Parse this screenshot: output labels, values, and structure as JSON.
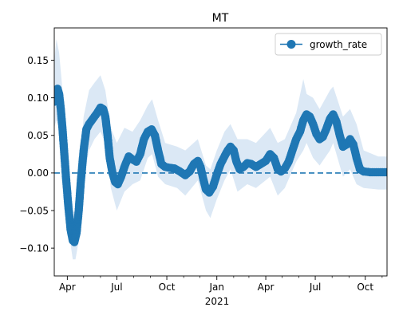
{
  "chart_data": {
    "type": "line",
    "title": "MT",
    "xlabel": "2021",
    "ylabel": "",
    "x_ticks": [
      "Apr",
      "Jul",
      "Oct",
      "Jan",
      "Apr",
      "Jul",
      "Oct"
    ],
    "y_ticks": [
      "0.15",
      "0.10",
      "0.05",
      "0.00",
      "−0.05",
      "−0.10"
    ],
    "ylim": [
      -0.137,
      0.193
    ],
    "xlim": [
      "2020-03-08",
      "2021-11-10"
    ],
    "legend": {
      "position": "top-right",
      "entries": [
        "growth_rate"
      ]
    },
    "grid": false,
    "colors": {
      "series": "#1f77b4",
      "band": "#dbe8f5"
    },
    "reference_line": {
      "y": 0.0,
      "style": "dashed"
    },
    "series": [
      {
        "name": "growth_rate",
        "marker": "circle",
        "points": [
          [
            "2020-03-08",
            0.095
          ],
          [
            "2020-03-11",
            0.108
          ],
          [
            "2020-03-14",
            0.112
          ],
          [
            "2020-03-17",
            0.105
          ],
          [
            "2020-03-20",
            0.085
          ],
          [
            "2020-03-23",
            0.06
          ],
          [
            "2020-03-26",
            0.03
          ],
          [
            "2020-03-30",
            -0.01
          ],
          [
            "2020-04-03",
            -0.045
          ],
          [
            "2020-04-07",
            -0.075
          ],
          [
            "2020-04-11",
            -0.09
          ],
          [
            "2020-04-14",
            -0.092
          ],
          [
            "2020-04-18",
            -0.08
          ],
          [
            "2020-04-22",
            -0.05
          ],
          [
            "2020-04-26",
            -0.01
          ],
          [
            "2020-05-01",
            0.03
          ],
          [
            "2020-05-06",
            0.058
          ],
          [
            "2020-05-11",
            0.065
          ],
          [
            "2020-05-16",
            0.07
          ],
          [
            "2020-05-21",
            0.075
          ],
          [
            "2020-05-26",
            0.08
          ],
          [
            "2020-06-01",
            0.087
          ],
          [
            "2020-06-06",
            0.085
          ],
          [
            "2020-06-10",
            0.075
          ],
          [
            "2020-06-14",
            0.05
          ],
          [
            "2020-06-18",
            0.02
          ],
          [
            "2020-06-23",
            0.0
          ],
          [
            "2020-06-28",
            -0.012
          ],
          [
            "2020-07-03",
            -0.015
          ],
          [
            "2020-07-09",
            -0.005
          ],
          [
            "2020-07-16",
            0.01
          ],
          [
            "2020-07-23",
            0.022
          ],
          [
            "2020-07-30",
            0.018
          ],
          [
            "2020-08-06",
            0.015
          ],
          [
            "2020-08-13",
            0.025
          ],
          [
            "2020-08-20",
            0.045
          ],
          [
            "2020-08-27",
            0.055
          ],
          [
            "2020-09-03",
            0.058
          ],
          [
            "2020-09-09",
            0.05
          ],
          [
            "2020-09-15",
            0.03
          ],
          [
            "2020-09-21",
            0.012
          ],
          [
            "2020-09-28",
            0.008
          ],
          [
            "2020-10-05",
            0.007
          ],
          [
            "2020-10-15",
            0.006
          ],
          [
            "2020-10-25",
            0.002
          ],
          [
            "2020-11-04",
            -0.003
          ],
          [
            "2020-11-12",
            0.002
          ],
          [
            "2020-11-20",
            0.012
          ],
          [
            "2020-11-27",
            0.016
          ],
          [
            "2020-12-02",
            0.008
          ],
          [
            "2020-12-07",
            -0.008
          ],
          [
            "2020-12-12",
            -0.022
          ],
          [
            "2020-12-18",
            -0.026
          ],
          [
            "2020-12-25",
            -0.018
          ],
          [
            "2021-01-01",
            -0.002
          ],
          [
            "2021-01-08",
            0.012
          ],
          [
            "2021-01-15",
            0.022
          ],
          [
            "2021-01-21",
            0.03
          ],
          [
            "2021-01-26",
            0.035
          ],
          [
            "2021-02-01",
            0.03
          ],
          [
            "2021-02-06",
            0.015
          ],
          [
            "2021-02-12",
            0.005
          ],
          [
            "2021-02-19",
            0.008
          ],
          [
            "2021-02-26",
            0.013
          ],
          [
            "2021-03-05",
            0.012
          ],
          [
            "2021-03-14",
            0.008
          ],
          [
            "2021-03-23",
            0.012
          ],
          [
            "2021-04-01",
            0.016
          ],
          [
            "2021-04-09",
            0.025
          ],
          [
            "2021-04-16",
            0.02
          ],
          [
            "2021-04-23",
            0.005
          ],
          [
            "2021-04-29",
            0.002
          ],
          [
            "2021-05-06",
            0.006
          ],
          [
            "2021-05-13",
            0.015
          ],
          [
            "2021-05-20",
            0.03
          ],
          [
            "2021-05-27",
            0.045
          ],
          [
            "2021-06-03",
            0.055
          ],
          [
            "2021-06-09",
            0.07
          ],
          [
            "2021-06-15",
            0.078
          ],
          [
            "2021-06-21",
            0.075
          ],
          [
            "2021-06-27",
            0.065
          ],
          [
            "2021-07-03",
            0.052
          ],
          [
            "2021-07-09",
            0.045
          ],
          [
            "2021-07-15",
            0.048
          ],
          [
            "2021-07-21",
            0.058
          ],
          [
            "2021-07-28",
            0.072
          ],
          [
            "2021-08-03",
            0.078
          ],
          [
            "2021-08-09",
            0.068
          ],
          [
            "2021-08-15",
            0.05
          ],
          [
            "2021-08-21",
            0.035
          ],
          [
            "2021-08-28",
            0.038
          ],
          [
            "2021-09-03",
            0.045
          ],
          [
            "2021-09-09",
            0.038
          ],
          [
            "2021-09-15",
            0.02
          ],
          [
            "2021-09-21",
            0.005
          ],
          [
            "2021-09-28",
            0.002
          ],
          [
            "2021-10-10",
            0.001
          ],
          [
            "2021-10-25",
            0.001
          ],
          [
            "2021-11-09",
            0.001
          ]
        ],
        "band": [
          [
            "2020-03-08",
            0.06,
            0.15
          ],
          [
            "2020-03-12",
            0.07,
            0.178
          ],
          [
            "2020-03-17",
            0.06,
            0.16
          ],
          [
            "2020-03-22",
            0.03,
            0.12
          ],
          [
            "2020-03-28",
            -0.03,
            0.06
          ],
          [
            "2020-04-04",
            -0.08,
            0.01
          ],
          [
            "2020-04-11",
            -0.115,
            -0.05
          ],
          [
            "2020-04-16",
            -0.115,
            -0.055
          ],
          [
            "2020-04-22",
            -0.09,
            -0.005
          ],
          [
            "2020-05-01",
            -0.01,
            0.075
          ],
          [
            "2020-05-11",
            0.03,
            0.11
          ],
          [
            "2020-05-21",
            0.045,
            0.12
          ],
          [
            "2020-06-01",
            0.055,
            0.13
          ],
          [
            "2020-06-10",
            0.04,
            0.11
          ],
          [
            "2020-06-20",
            -0.02,
            0.06
          ],
          [
            "2020-07-01",
            -0.05,
            0.04
          ],
          [
            "2020-07-15",
            -0.025,
            0.06
          ],
          [
            "2020-07-30",
            -0.015,
            0.055
          ],
          [
            "2020-08-13",
            -0.01,
            0.07
          ],
          [
            "2020-08-27",
            0.02,
            0.09
          ],
          [
            "2020-09-04",
            0.025,
            0.098
          ],
          [
            "2020-09-15",
            -0.005,
            0.07
          ],
          [
            "2020-09-28",
            -0.015,
            0.04
          ],
          [
            "2020-10-20",
            -0.02,
            0.035
          ],
          [
            "2020-11-04",
            -0.03,
            0.03
          ],
          [
            "2020-11-27",
            -0.01,
            0.045
          ],
          [
            "2020-12-12",
            -0.05,
            0.01
          ],
          [
            "2020-12-20",
            -0.06,
            0.005
          ],
          [
            "2021-01-01",
            -0.035,
            0.03
          ],
          [
            "2021-01-15",
            -0.01,
            0.055
          ],
          [
            "2021-01-26",
            0.005,
            0.065
          ],
          [
            "2021-02-08",
            -0.025,
            0.045
          ],
          [
            "2021-02-26",
            -0.015,
            0.045
          ],
          [
            "2021-03-14",
            -0.02,
            0.04
          ],
          [
            "2021-04-09",
            -0.005,
            0.06
          ],
          [
            "2021-04-23",
            -0.03,
            0.04
          ],
          [
            "2021-05-06",
            -0.02,
            0.045
          ],
          [
            "2021-05-27",
            0.015,
            0.08
          ],
          [
            "2021-06-09",
            0.03,
            0.125
          ],
          [
            "2021-06-15",
            0.04,
            0.105
          ],
          [
            "2021-06-27",
            0.02,
            0.1
          ],
          [
            "2021-07-09",
            0.01,
            0.085
          ],
          [
            "2021-07-28",
            0.03,
            0.11
          ],
          [
            "2021-08-03",
            0.04,
            0.115
          ],
          [
            "2021-08-21",
            -0.005,
            0.075
          ],
          [
            "2021-09-03",
            0.005,
            0.085
          ],
          [
            "2021-09-15",
            -0.015,
            0.065
          ],
          [
            "2021-09-28",
            -0.02,
            0.03
          ],
          [
            "2021-10-25",
            -0.022,
            0.022
          ],
          [
            "2021-11-09",
            -0.022,
            0.022
          ]
        ]
      }
    ]
  }
}
